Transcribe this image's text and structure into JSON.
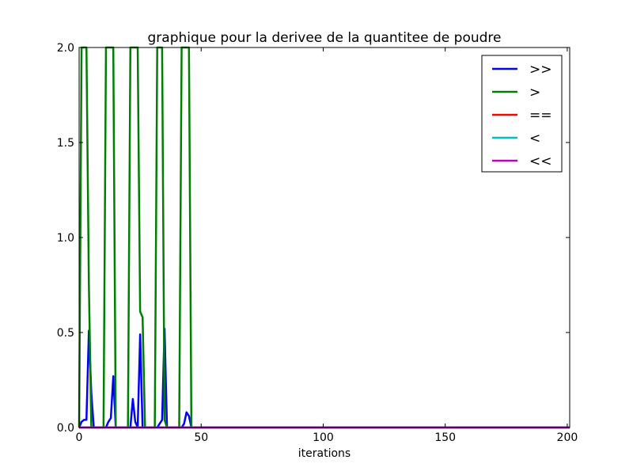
{
  "chart_data": {
    "type": "line",
    "title": "graphique pour la derivee de la quantitee de poudre",
    "xlabel": "iterations",
    "ylabel": "",
    "xlim": [
      0,
      201
    ],
    "ylim": [
      0,
      2.0
    ],
    "xticks": [
      0,
      50,
      100,
      150,
      200
    ],
    "xtick_labels": [
      "0",
      "50",
      "100",
      "150",
      "200"
    ],
    "yticks": [
      0,
      0.5,
      1.0,
      1.5,
      2.0
    ],
    "ytick_labels": [
      "0.0",
      "0.5",
      "1.0",
      "1.5",
      "2.0"
    ],
    "grid": false,
    "legend_position": "top-right",
    "series": [
      {
        "name": ">>",
        "color": "#0000ff",
        "x": [
          0,
          1,
          2,
          3,
          4,
          5,
          6,
          7,
          8,
          9,
          10,
          11,
          12,
          13,
          14,
          15,
          16,
          17,
          18,
          19,
          20,
          21,
          22,
          23,
          24,
          25,
          26,
          27,
          28,
          29,
          30,
          31,
          32,
          33,
          34,
          35,
          36,
          37,
          38,
          39,
          40,
          41,
          42,
          43,
          44,
          45,
          46,
          47,
          201
        ],
        "y": [
          0,
          0.03,
          0.04,
          0.04,
          0.51,
          0.18,
          0,
          0,
          0,
          0,
          0,
          0,
          0.03,
          0.05,
          0.27,
          0,
          0,
          0,
          0,
          0,
          0,
          0,
          0.15,
          0.03,
          0,
          0.49,
          0,
          0,
          0,
          0,
          0,
          0,
          0,
          0.02,
          0.04,
          0.52,
          0,
          0,
          0,
          0,
          0,
          0,
          0,
          0.02,
          0.08,
          0.06,
          0,
          0,
          0
        ]
      },
      {
        "name": ">",
        "color": "#008000",
        "x": [
          0,
          1,
          2,
          3,
          4,
          5,
          6,
          7,
          8,
          9,
          10,
          11,
          12,
          13,
          14,
          15,
          16,
          17,
          18,
          19,
          20,
          21,
          22,
          23,
          24,
          25,
          26,
          27,
          28,
          29,
          30,
          31,
          32,
          33,
          34,
          35,
          36,
          37,
          38,
          39,
          40,
          41,
          42,
          43,
          44,
          45,
          46,
          47,
          201
        ],
        "y": [
          0,
          2.0,
          2.0,
          2.0,
          0.75,
          0,
          0,
          0,
          0,
          0,
          0,
          2.0,
          2.0,
          2.0,
          2.0,
          0,
          0,
          0,
          0,
          0,
          0,
          2.0,
          2.0,
          2.0,
          2.0,
          0.61,
          0.58,
          0,
          0,
          0,
          0,
          0,
          2.0,
          2.0,
          2.0,
          0.04,
          0,
          0,
          0,
          0,
          0,
          0,
          2.0,
          2.0,
          2.0,
          2.0,
          0,
          0,
          0
        ]
      },
      {
        "name": "==",
        "color": "#ff0000",
        "x": [
          0,
          201
        ],
        "y": [
          0,
          0
        ]
      },
      {
        "name": "<",
        "color": "#00bfbf",
        "x": [
          0,
          201
        ],
        "y": [
          0,
          0
        ]
      },
      {
        "name": "<<",
        "color": "#bf00bf",
        "x": [
          0,
          201
        ],
        "y": [
          0,
          0
        ]
      }
    ]
  }
}
